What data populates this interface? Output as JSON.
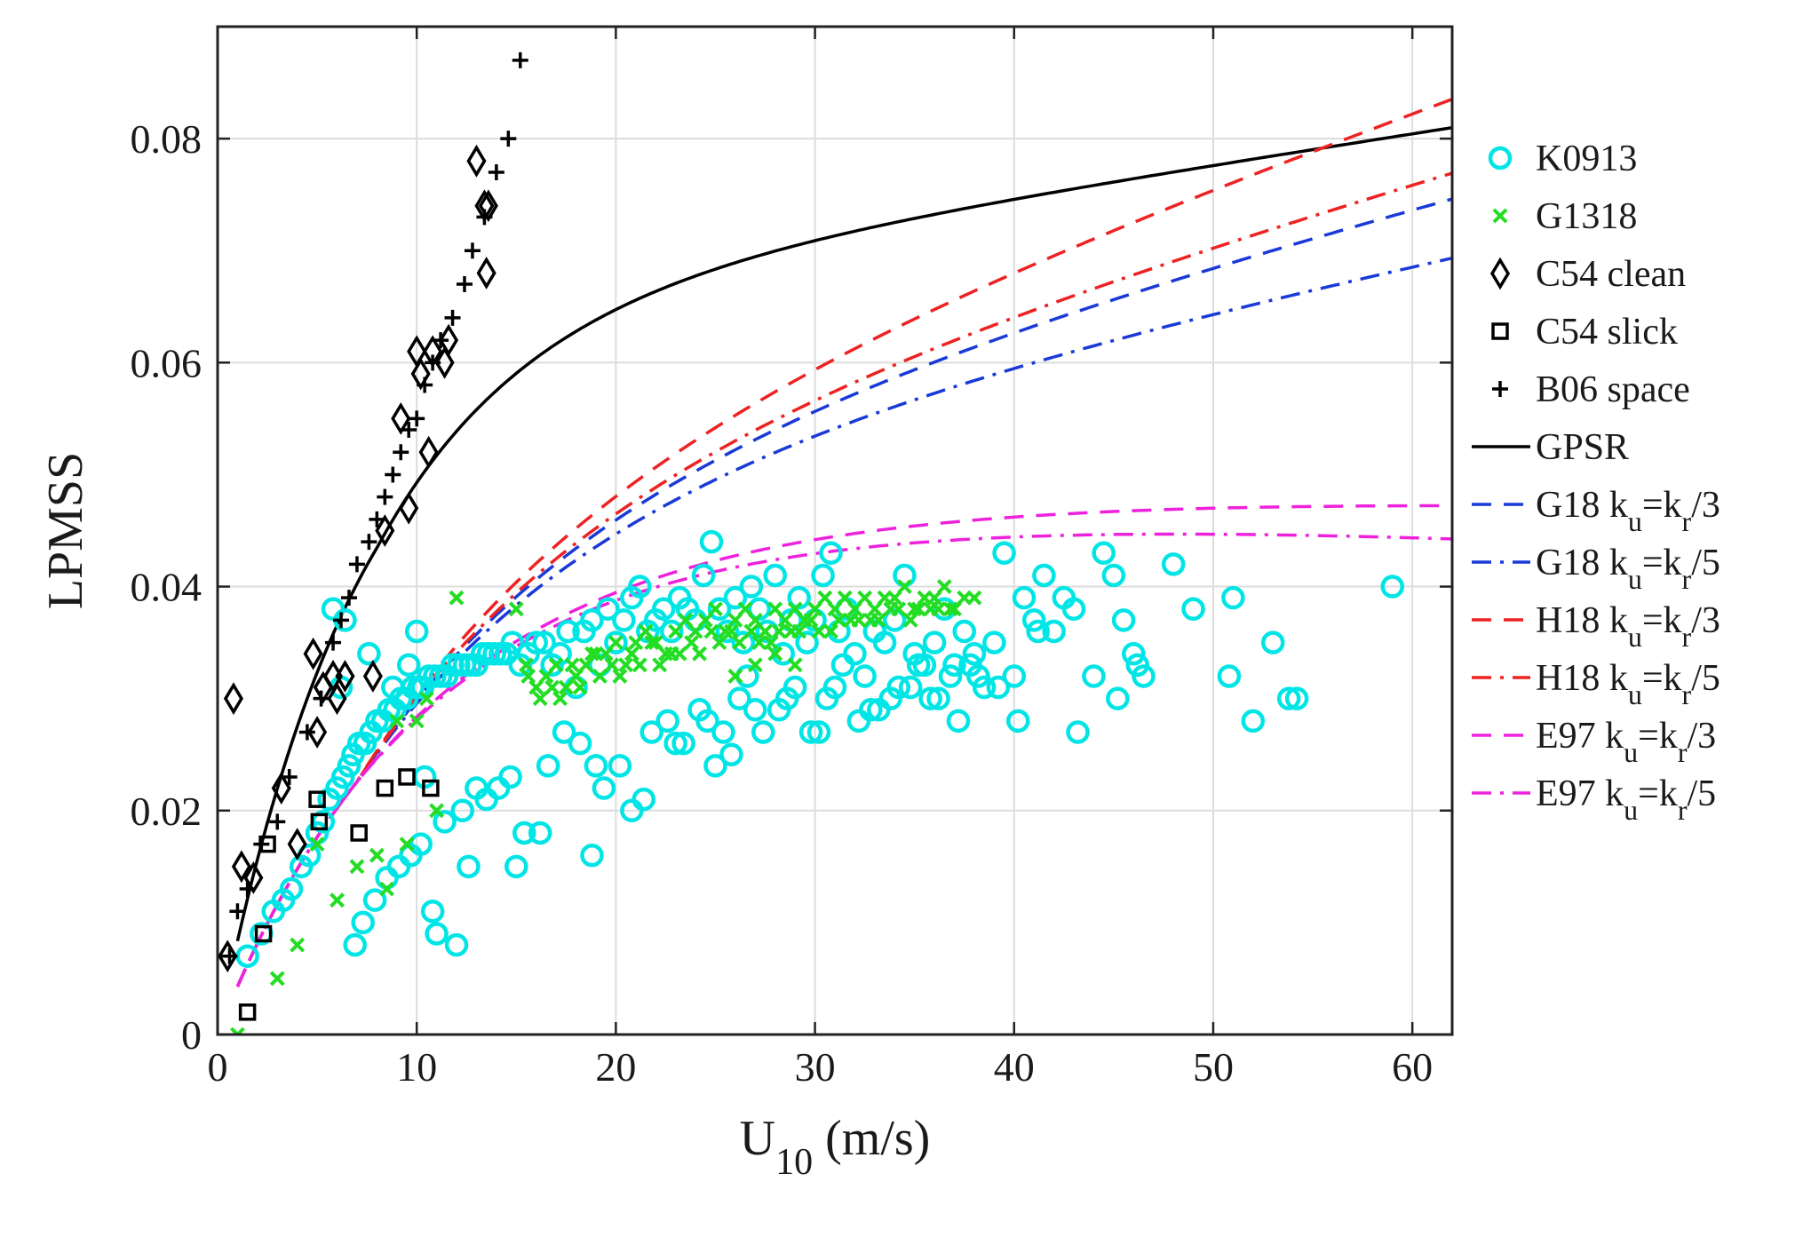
{
  "chart_data": {
    "type": "scatter",
    "xlabel": "U",
    "xlabel_sub": "10",
    "xlabel_unit": " (m/s)",
    "ylabel": "LPMSS",
    "xlim": [
      0,
      62
    ],
    "ylim": [
      0,
      0.09
    ],
    "xticks": [
      0,
      10,
      20,
      30,
      40,
      50,
      60
    ],
    "xtick_labels": [
      "0",
      "10",
      "20",
      "30",
      "40",
      "50",
      "60"
    ],
    "yticks": [
      0,
      0.02,
      0.04,
      0.06,
      0.08
    ],
    "ytick_labels": [
      "0",
      "0.02",
      "0.04",
      "0.06",
      "0.08"
    ],
    "grid": true,
    "legend_position": "right, outside plot",
    "scatter_series": [
      {
        "name": "K0913",
        "marker": "circle",
        "color": "#00e5e5",
        "x": [
          1.5,
          2.2,
          2.8,
          3.3,
          3.7,
          4.2,
          4.6,
          5.0,
          5.3,
          5.6,
          6.0,
          6.3,
          6.6,
          6.8,
          7.1,
          7.4,
          7.7,
          8.0,
          8.3,
          8.6,
          8.9,
          9.2,
          9.5,
          9.8,
          10.1,
          10.3,
          10.6,
          10.9,
          11.2,
          11.5,
          11.8,
          12.1,
          12.4,
          12.7,
          13.0,
          13.3,
          13.6,
          13.9,
          14.2,
          14.5,
          14.8,
          15.2,
          15.6,
          16.0,
          16.4,
          16.8,
          17.2,
          17.6,
          18.0,
          18.4,
          18.8,
          19.2,
          19.6,
          20.0,
          20.4,
          20.8,
          21.2,
          21.6,
          22.0,
          22.4,
          22.8,
          23.2,
          23.6,
          24.0,
          24.4,
          24.8,
          25.2,
          25.6,
          26.0,
          26.4,
          26.8,
          27.2,
          27.6,
          28.0,
          28.4,
          28.8,
          29.2,
          29.6,
          30.0,
          30.4,
          30.8,
          31.2,
          31.6,
          32.0,
          32.5,
          33.0,
          33.5,
          34.0,
          34.5,
          35.0,
          35.5,
          36.0,
          36.5,
          37.0,
          37.5,
          38.0,
          38.5,
          39.0,
          39.5,
          40.0,
          40.5,
          41.0,
          41.5,
          42.0,
          42.5,
          43.0,
          44.0,
          44.5,
          45.0,
          45.5,
          46.0,
          46.5,
          48.0,
          49.0,
          50.8,
          51.0,
          52.0,
          53.0,
          53.8,
          54.2,
          59.0,
          5.8,
          6.4,
          7.6,
          8.8,
          9.6,
          10.0,
          10.4,
          10.8,
          11.0,
          12.0,
          12.6,
          13.0,
          15.0,
          15.4,
          16.2,
          18.8,
          19.4,
          20.2,
          20.8,
          21.4,
          22.6,
          23.4,
          24.2,
          25.0,
          25.8,
          26.6,
          27.4,
          28.2,
          29.0,
          29.8,
          30.6,
          31.4,
          32.2,
          33.2,
          34.2,
          35.2,
          36.2,
          37.2,
          38.2,
          39.2,
          40.2,
          41.2,
          43.2,
          45.2,
          46.2,
          6.2,
          6.9,
          7.3,
          7.9,
          8.5,
          9.1,
          9.7,
          10.2,
          11.4,
          12.3,
          13.5,
          14.1,
          14.7,
          16.6,
          17.4,
          18.2,
          19.0,
          21.8,
          23.0,
          24.6,
          25.4,
          26.2,
          27.0,
          28.6,
          30.2,
          31.0,
          32.8,
          33.8,
          34.8,
          35.8,
          36.8,
          37.8
        ],
        "y": [
          0.007,
          0.009,
          0.011,
          0.012,
          0.013,
          0.015,
          0.016,
          0.018,
          0.019,
          0.021,
          0.022,
          0.023,
          0.024,
          0.025,
          0.026,
          0.026,
          0.027,
          0.028,
          0.028,
          0.029,
          0.029,
          0.03,
          0.03,
          0.031,
          0.031,
          0.031,
          0.032,
          0.032,
          0.032,
          0.032,
          0.033,
          0.033,
          0.033,
          0.033,
          0.033,
          0.034,
          0.034,
          0.034,
          0.034,
          0.034,
          0.035,
          0.033,
          0.034,
          0.035,
          0.035,
          0.033,
          0.034,
          0.036,
          0.031,
          0.036,
          0.037,
          0.033,
          0.038,
          0.035,
          0.037,
          0.039,
          0.04,
          0.036,
          0.037,
          0.038,
          0.036,
          0.039,
          0.038,
          0.037,
          0.041,
          0.044,
          0.038,
          0.036,
          0.039,
          0.035,
          0.04,
          0.038,
          0.036,
          0.041,
          0.034,
          0.037,
          0.039,
          0.035,
          0.037,
          0.041,
          0.043,
          0.036,
          0.038,
          0.034,
          0.032,
          0.036,
          0.035,
          0.037,
          0.041,
          0.034,
          0.033,
          0.035,
          0.038,
          0.033,
          0.036,
          0.034,
          0.031,
          0.035,
          0.043,
          0.032,
          0.039,
          0.037,
          0.041,
          0.036,
          0.039,
          0.038,
          0.032,
          0.043,
          0.041,
          0.037,
          0.034,
          0.032,
          0.042,
          0.038,
          0.032,
          0.039,
          0.028,
          0.035,
          0.03,
          0.03,
          0.04,
          0.038,
          0.037,
          0.034,
          0.031,
          0.033,
          0.036,
          0.023,
          0.011,
          0.009,
          0.008,
          0.015,
          0.022,
          0.015,
          0.018,
          0.018,
          0.016,
          0.022,
          0.024,
          0.02,
          0.021,
          0.028,
          0.026,
          0.029,
          0.024,
          0.025,
          0.032,
          0.027,
          0.029,
          0.031,
          0.027,
          0.03,
          0.033,
          0.028,
          0.029,
          0.031,
          0.033,
          0.03,
          0.028,
          0.032,
          0.031,
          0.028,
          0.036,
          0.027,
          0.03,
          0.033,
          0.031,
          0.008,
          0.01,
          0.012,
          0.014,
          0.015,
          0.016,
          0.017,
          0.019,
          0.02,
          0.021,
          0.022,
          0.023,
          0.024,
          0.027,
          0.026,
          0.024,
          0.027,
          0.026,
          0.028,
          0.027,
          0.03,
          0.029,
          0.03,
          0.027,
          0.031,
          0.029,
          0.03,
          0.031,
          0.03,
          0.032,
          0.033
        ]
      },
      {
        "name": "G1318",
        "marker": "x",
        "color": "#22dd22",
        "x": [
          1.0,
          3.0,
          4.0,
          5.0,
          6.0,
          7.0,
          8.0,
          8.5,
          9.0,
          9.5,
          10.0,
          10.5,
          11.0,
          12.0,
          15.0,
          15.5,
          16.0,
          16.5,
          17.0,
          17.5,
          18.0,
          18.5,
          19.0,
          19.5,
          20.0,
          20.5,
          21.0,
          21.5,
          22.0,
          22.5,
          23.0,
          23.5,
          24.0,
          24.5,
          25.0,
          25.5,
          26.0,
          26.5,
          27.0,
          27.5,
          28.0,
          28.5,
          29.0,
          29.5,
          30.0,
          30.5,
          31.0,
          31.5,
          32.0,
          32.5,
          33.0,
          33.5,
          34.0,
          34.5,
          35.0,
          35.5,
          36.0,
          36.5,
          37.0,
          37.5,
          38.0,
          16.2,
          17.2,
          18.2,
          19.2,
          20.2,
          21.2,
          22.2,
          23.2,
          24.2,
          25.2,
          26.2,
          27.2,
          28.2,
          29.2,
          30.2,
          31.2,
          32.2,
          33.2,
          34.2,
          35.2,
          36.2,
          15.6,
          16.8,
          17.8,
          18.8,
          19.8,
          20.8,
          21.8,
          22.8,
          23.8,
          24.8,
          25.8,
          26.8,
          27.8,
          28.8,
          29.8,
          30.8,
          31.8,
          32.8,
          33.8,
          34.8,
          35.8,
          36.8,
          26.0,
          27.0,
          28.0,
          29.0
        ],
        "y": [
          0.0,
          0.005,
          0.008,
          0.017,
          0.012,
          0.015,
          0.016,
          0.013,
          0.028,
          0.017,
          0.028,
          0.03,
          0.02,
          0.039,
          0.038,
          0.033,
          0.031,
          0.032,
          0.033,
          0.031,
          0.032,
          0.033,
          0.034,
          0.034,
          0.035,
          0.033,
          0.035,
          0.036,
          0.035,
          0.034,
          0.036,
          0.037,
          0.036,
          0.037,
          0.038,
          0.036,
          0.037,
          0.038,
          0.037,
          0.036,
          0.038,
          0.037,
          0.038,
          0.037,
          0.038,
          0.039,
          0.038,
          0.039,
          0.038,
          0.039,
          0.038,
          0.039,
          0.039,
          0.04,
          0.038,
          0.039,
          0.039,
          0.04,
          0.038,
          0.039,
          0.039,
          0.03,
          0.03,
          0.031,
          0.032,
          0.032,
          0.033,
          0.033,
          0.034,
          0.034,
          0.035,
          0.035,
          0.035,
          0.036,
          0.036,
          0.036,
          0.037,
          0.037,
          0.037,
          0.038,
          0.038,
          0.038,
          0.032,
          0.031,
          0.033,
          0.034,
          0.033,
          0.034,
          0.035,
          0.034,
          0.035,
          0.036,
          0.036,
          0.036,
          0.035,
          0.036,
          0.037,
          0.036,
          0.037,
          0.037,
          0.038,
          0.037,
          0.038,
          0.038,
          0.032,
          0.033,
          0.034,
          0.033
        ]
      },
      {
        "name": "C54 clean",
        "marker": "diamond",
        "color": "#000000",
        "x": [
          0.5,
          0.8,
          1.2,
          1.8,
          3.2,
          4.0,
          4.8,
          5.0,
          5.3,
          5.8,
          6.0,
          6.4,
          7.8,
          8.4,
          9.2,
          9.6,
          10.0,
          10.2,
          10.6,
          10.8,
          11.4,
          11.6,
          13.0,
          13.4,
          13.6,
          13.5
        ],
        "y": [
          0.007,
          0.03,
          0.015,
          0.014,
          0.022,
          0.017,
          0.034,
          0.027,
          0.031,
          0.032,
          0.03,
          0.032,
          0.032,
          0.045,
          0.055,
          0.047,
          0.061,
          0.059,
          0.052,
          0.061,
          0.06,
          0.062,
          0.078,
          0.074,
          0.074,
          0.068
        ]
      },
      {
        "name": "C54 slick",
        "marker": "square",
        "color": "#000000",
        "x": [
          1.5,
          2.3,
          2.5,
          5.0,
          5.1,
          7.1,
          8.4,
          9.5,
          10.7
        ],
        "y": [
          0.002,
          0.009,
          0.017,
          0.021,
          0.019,
          0.018,
          0.022,
          0.023,
          0.022
        ]
      },
      {
        "name": "B06 space",
        "marker": "plus",
        "color": "#000000",
        "x": [
          0.6,
          1.0,
          1.5,
          2.2,
          3.0,
          3.6,
          4.5,
          5.2,
          5.8,
          6.2,
          6.6,
          7.0,
          7.6,
          8.0,
          8.4,
          8.8,
          9.2,
          9.6,
          10.0,
          10.4,
          10.8,
          11.2,
          11.8,
          12.4,
          12.8,
          13.4,
          14.0,
          14.6,
          15.2
        ],
        "y": [
          0.007,
          0.011,
          0.013,
          0.017,
          0.019,
          0.023,
          0.027,
          0.03,
          0.035,
          0.037,
          0.039,
          0.042,
          0.044,
          0.046,
          0.048,
          0.05,
          0.052,
          0.054,
          0.055,
          0.058,
          0.06,
          0.062,
          0.064,
          0.067,
          0.07,
          0.073,
          0.077,
          0.08,
          0.087
        ]
      }
    ],
    "line_series": [
      {
        "name": "GPSR",
        "color": "#000000",
        "dash": "solid",
        "a": 0.05,
        "b": 0.046,
        "c": 0.8,
        "d": 0.2,
        "e": 0.46
      },
      {
        "name": "G18 k",
        "sub1": "u",
        "mid": "=k",
        "sub2": "r",
        "tail": "/3",
        "color": "#1a3ad8",
        "dash": "dash",
        "a": 0.04,
        "b": 0.0265,
        "c": 1.35,
        "d": 0.18,
        "e": 0.78
      },
      {
        "name": "G18 k",
        "sub1": "u",
        "mid": "=k",
        "sub2": "r",
        "tail": "/5",
        "color": "#1a3ad8",
        "dash": "dashdot",
        "a": 0.04,
        "b": 0.0265,
        "c": 1.35,
        "d": 0.18,
        "e": 0.62
      },
      {
        "name": "H18 k",
        "sub1": "u",
        "mid": "=k",
        "sub2": "r",
        "tail": "/3",
        "color": "#ee2222",
        "dash": "dash",
        "a": 0.04,
        "b": 0.0265,
        "c": 1.35,
        "d": 0.18,
        "e": 1.05
      },
      {
        "name": "H18 k",
        "sub1": "u",
        "mid": "=k",
        "sub2": "r",
        "tail": "/5",
        "color": "#ee2222",
        "dash": "dashdot",
        "a": 0.04,
        "b": 0.0265,
        "c": 1.35,
        "d": 0.18,
        "e": 0.85
      },
      {
        "name": "E97 k",
        "sub1": "u",
        "mid": "=k",
        "sub2": "r",
        "tail": "/3",
        "color": "#ee22dd",
        "dash": "dash",
        "a": 0.04,
        "b": 0.0265,
        "c": 1.35,
        "d": 0.18,
        "e": -0.05
      },
      {
        "name": "E97 k",
        "sub1": "u",
        "mid": "=k",
        "sub2": "r",
        "tail": "/5",
        "color": "#ee22dd",
        "dash": "dashdot",
        "a": 0.04,
        "b": 0.0265,
        "c": 1.35,
        "d": 0.18,
        "e": -0.14
      }
    ]
  }
}
